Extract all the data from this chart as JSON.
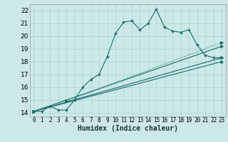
{
  "xlabel": "Humidex (Indice chaleur)",
  "xlim": [
    -0.5,
    23.5
  ],
  "ylim": [
    13.7,
    22.5
  ],
  "xticks": [
    0,
    1,
    2,
    3,
    4,
    5,
    6,
    7,
    8,
    9,
    10,
    11,
    12,
    13,
    14,
    15,
    16,
    17,
    18,
    19,
    20,
    21,
    22,
    23
  ],
  "yticks": [
    14,
    15,
    16,
    17,
    18,
    19,
    20,
    21,
    22
  ],
  "bg_color": "#cce8e8",
  "grid_color": "#aad4d4",
  "line_color": "#1a6b6b",
  "line1_x": [
    0,
    1,
    2,
    3,
    4,
    5,
    6,
    7,
    8,
    9,
    10,
    11,
    12,
    13,
    14,
    15,
    16,
    17,
    18,
    19,
    20,
    21,
    22,
    23
  ],
  "line1_y": [
    14.1,
    14.1,
    14.5,
    14.2,
    14.2,
    15.0,
    16.0,
    16.6,
    17.0,
    18.4,
    20.2,
    21.1,
    21.2,
    20.5,
    21.0,
    22.1,
    20.7,
    20.4,
    20.3,
    20.5,
    19.3,
    18.5,
    18.3,
    18.3
  ],
  "line3_x": [
    0,
    23
  ],
  "line3_y": [
    14.1,
    19.2
  ],
  "line4_x": [
    0,
    23
  ],
  "line4_y": [
    14.1,
    18.3
  ],
  "line5_x": [
    0,
    23
  ],
  "line5_y": [
    14.1,
    18.0
  ],
  "line6_x": [
    4,
    23
  ],
  "line6_y": [
    14.9,
    19.5
  ]
}
